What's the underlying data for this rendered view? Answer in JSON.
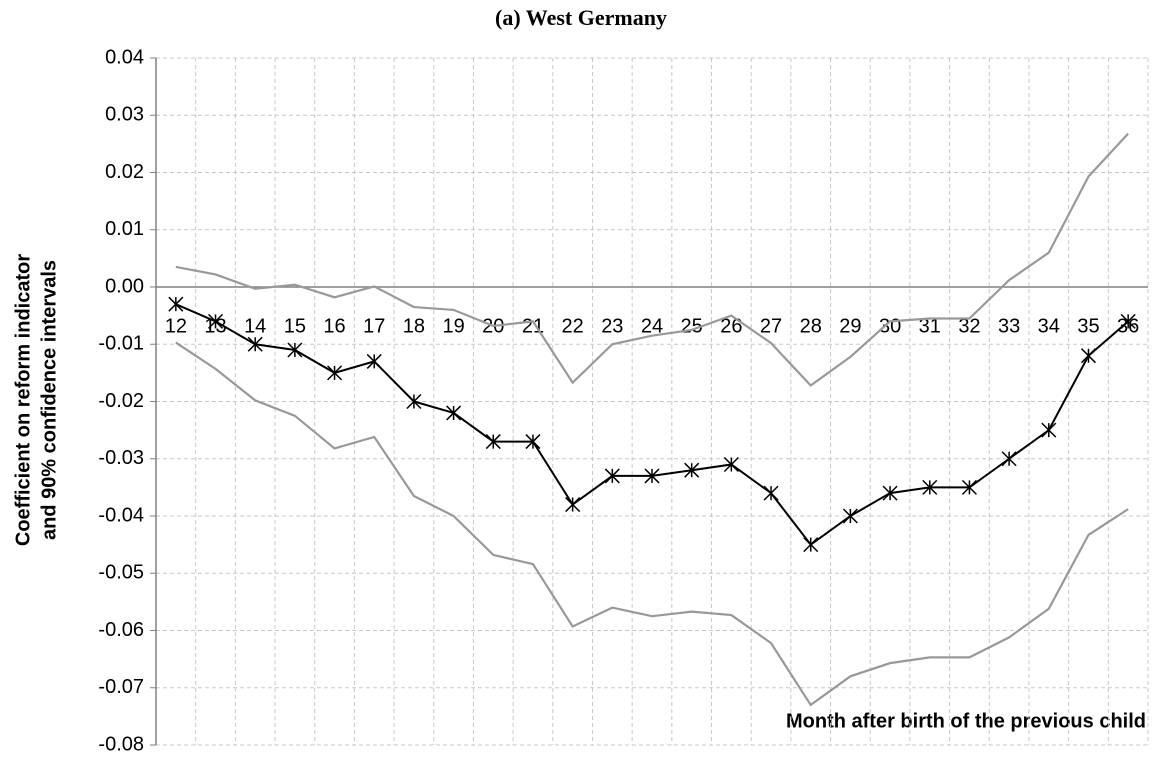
{
  "chart_data": {
    "type": "line",
    "title": "(a) West Germany",
    "y_label": [
      "Coefficient on reform indicator",
      "and 90% confidence intervals"
    ],
    "x_label": "Month after birth of the previous child",
    "categories": [
      "12",
      "13",
      "14",
      "15",
      "16",
      "17",
      "18",
      "19",
      "20",
      "21",
      "22",
      "23",
      "24",
      "25",
      "26",
      "27",
      "28",
      "29",
      "30",
      "31",
      "32",
      "33",
      "34",
      "35",
      "36"
    ],
    "series": [
      {
        "color": "#000000",
        "marker": "asterisk",
        "values": [
          -0.003,
          -0.006,
          -0.01,
          -0.011,
          -0.015,
          -0.013,
          -0.02,
          -0.022,
          -0.027,
          -0.027,
          -0.038,
          -0.033,
          -0.033,
          -0.032,
          -0.031,
          -0.036,
          -0.045,
          -0.04,
          -0.036,
          -0.035,
          -0.035,
          -0.03,
          -0.025,
          -0.012,
          -0.006
        ]
      },
      {
        "color": "#999999",
        "values": [
          0.0035,
          0.0022,
          -0.0003,
          0.0004,
          -0.0018,
          0.0001,
          -0.0035,
          -0.004,
          -0.0068,
          -0.006,
          -0.0167,
          -0.01,
          -0.0085,
          -0.0075,
          -0.005,
          -0.0098,
          -0.0172,
          -0.0122,
          -0.006,
          -0.0055,
          -0.0055,
          0.0012,
          0.006,
          0.0193,
          0.0268
        ]
      },
      {
        "color": "#999999",
        "values": [
          -0.0097,
          -0.0143,
          -0.0198,
          -0.0225,
          -0.0282,
          -0.0262,
          -0.0365,
          -0.04,
          -0.0468,
          -0.0484,
          -0.0593,
          -0.056,
          -0.0575,
          -0.0567,
          -0.0573,
          -0.0622,
          -0.073,
          -0.068,
          -0.0657,
          -0.0647,
          -0.0647,
          -0.0612,
          -0.0562,
          -0.0433,
          -0.0388
        ]
      }
    ],
    "ylim": [
      -0.08,
      0.04
    ],
    "yticks": [
      0.04,
      0.03,
      0.02,
      0.01,
      {
        "value": 0,
        "label": "0.00"
      },
      -0.01,
      -0.02,
      -0.03,
      -0.04,
      -0.05,
      -0.06,
      -0.07,
      -0.08
    ],
    "grid": true
  }
}
